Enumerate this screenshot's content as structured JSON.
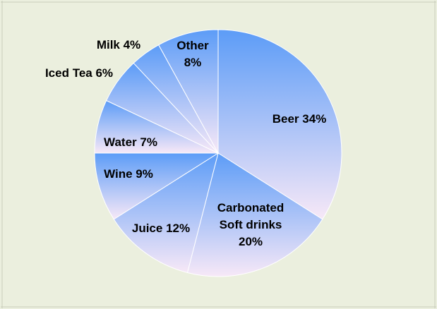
{
  "colors": {
    "background": "#ebefde",
    "slice_top": "#5c9cf7",
    "slice_bottom": "#f7e8f7",
    "separator": "#ffffff"
  },
  "chart_data": {
    "type": "pie",
    "title": "",
    "legend": "none",
    "start_angle_deg": 0,
    "direction": "clockwise",
    "slices": [
      {
        "name": "Beer",
        "value": 34,
        "label_lines": [
          "Beer 34%"
        ]
      },
      {
        "name": "Carbonated Soft drinks",
        "value": 20,
        "label_lines": [
          "Carbonated",
          "Soft drinks",
          "20%"
        ]
      },
      {
        "name": "Juice",
        "value": 12,
        "label_lines": [
          "Juice 12%"
        ]
      },
      {
        "name": "Wine",
        "value": 9,
        "label_lines": [
          "Wine 9%"
        ]
      },
      {
        "name": "Water",
        "value": 7,
        "label_lines": [
          "Water 7%"
        ]
      },
      {
        "name": "Iced Tea",
        "value": 6,
        "label_lines": [
          "Iced Tea 6%"
        ]
      },
      {
        "name": "Milk",
        "value": 4,
        "label_lines": [
          "Milk 4%"
        ]
      },
      {
        "name": "Other",
        "value": 8,
        "label_lines": [
          "Other",
          "8%"
        ]
      }
    ]
  }
}
